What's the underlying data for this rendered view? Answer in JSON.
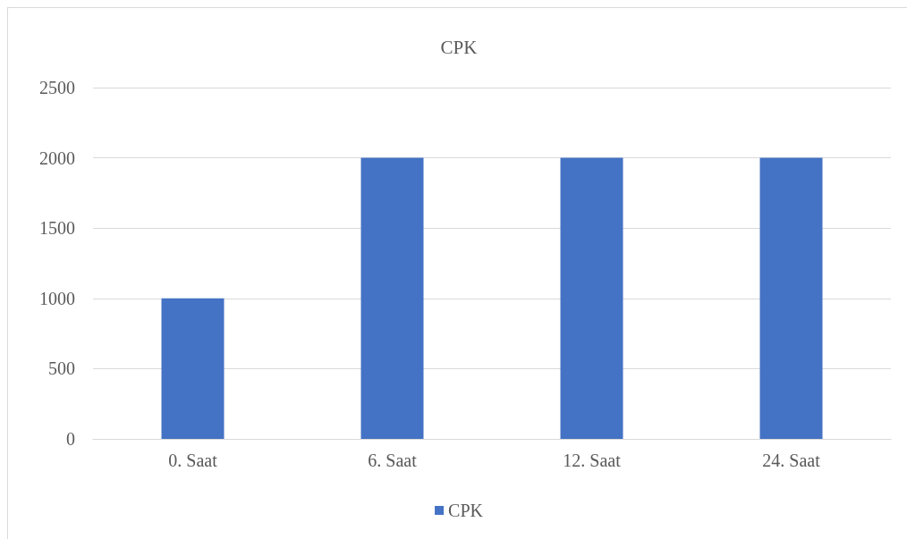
{
  "chart_data": {
    "type": "bar",
    "title": "CPK",
    "categories": [
      "0. Saat",
      "6. Saat",
      "12. Saat",
      "24. Saat"
    ],
    "series": [
      {
        "name": "CPK",
        "color": "#4472c4",
        "values": [
          1000,
          2000,
          2000,
          2000
        ]
      }
    ],
    "ylim": [
      0,
      2500
    ],
    "yticks": [
      0,
      500,
      1000,
      1500,
      2000,
      2500
    ],
    "grid": "y",
    "legend": "bottom"
  }
}
